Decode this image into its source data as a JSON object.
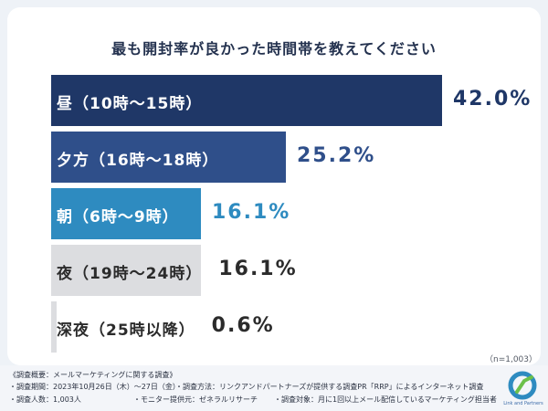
{
  "chart_data": {
    "type": "bar",
    "orientation": "horizontal",
    "title": "最も開封率が良かった時間帯を教えてください",
    "categories": [
      "昼（10時〜15時）",
      "夕方（16時〜18時）",
      "朝（6時〜9時）",
      "夜（19時〜24時）",
      "深夜（25時以降）"
    ],
    "values": [
      42.0,
      25.2,
      16.1,
      16.1,
      0.6
    ],
    "value_labels": [
      "42.0%",
      "25.2%",
      "16.1%",
      "16.1%",
      "0.6%"
    ],
    "unit": "%",
    "xlim": [
      0,
      42.0
    ],
    "colors": [
      "#1f3767",
      "#2f4f8a",
      "#2e8bc0",
      "#dcdde0",
      "#dcdde0"
    ],
    "label_colors": [
      "#ffffff",
      "#ffffff",
      "#ffffff",
      "#2b2b2b",
      "#2b2b2b"
    ],
    "value_colors": [
      "#1f3767",
      "#2f4f8a",
      "#2e8bc0",
      "#2b2b2b",
      "#2b2b2b"
    ],
    "note": "（n=1,003）"
  },
  "footer": {
    "heading": "《調査概要：メールマーケティングに関する調査》",
    "period": "・調査期間：2023年10月26日（木）〜27日（金）",
    "method": "・調査方法：リンクアンドパートナーズが提供する調査PR「RRP」によるインターネット調査",
    "respondents": "・調査人数：1,003人",
    "monitor": "・モニター提供元：ゼネラルリサーチ",
    "target": "・調査対象：月に1回以上メール配信しているマーケティング担当者"
  },
  "logo": {
    "text": "Link and Partners",
    "colors": [
      "#2e8bc0",
      "#6cc04a"
    ]
  }
}
